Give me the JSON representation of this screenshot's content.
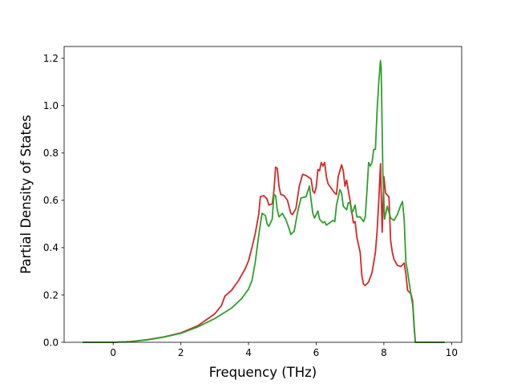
{
  "chart_data": {
    "type": "line",
    "title": "",
    "xlabel": "Frequency (THz)",
    "ylabel": "Partial Density of States",
    "xlim": [
      -1.45,
      10.3
    ],
    "ylim": [
      0,
      1.25
    ],
    "xticks": [
      0,
      2,
      4,
      6,
      8,
      10
    ],
    "yticks": [
      0.0,
      0.2,
      0.4,
      0.6,
      0.8,
      1.0,
      1.2
    ],
    "xtick_labels": [
      "0",
      "2",
      "4",
      "6",
      "8",
      "10"
    ],
    "ytick_labels": [
      "0.0",
      "0.2",
      "0.4",
      "0.6",
      "0.8",
      "1.0",
      "1.2"
    ],
    "grid": false,
    "legend": "none",
    "series": [
      {
        "color": "#d62728",
        "points": [
          [
            -0.9,
            0
          ],
          [
            0,
            0
          ],
          [
            0.5,
            0.003
          ],
          [
            1.0,
            0.011
          ],
          [
            1.5,
            0.023
          ],
          [
            2.0,
            0.04
          ],
          [
            2.5,
            0.07
          ],
          [
            3.0,
            0.12
          ],
          [
            3.2,
            0.155
          ],
          [
            3.3,
            0.195
          ],
          [
            3.5,
            0.22
          ],
          [
            3.7,
            0.26
          ],
          [
            3.9,
            0.31
          ],
          [
            4.0,
            0.345
          ],
          [
            4.1,
            0.4
          ],
          [
            4.2,
            0.46
          ],
          [
            4.3,
            0.54
          ],
          [
            4.35,
            0.615
          ],
          [
            4.45,
            0.62
          ],
          [
            4.55,
            0.605
          ],
          [
            4.6,
            0.58
          ],
          [
            4.7,
            0.585
          ],
          [
            4.75,
            0.64
          ],
          [
            4.8,
            0.74
          ],
          [
            4.85,
            0.735
          ],
          [
            4.9,
            0.66
          ],
          [
            4.95,
            0.625
          ],
          [
            5.05,
            0.62
          ],
          [
            5.15,
            0.6
          ],
          [
            5.25,
            0.545
          ],
          [
            5.3,
            0.54
          ],
          [
            5.4,
            0.565
          ],
          [
            5.5,
            0.66
          ],
          [
            5.6,
            0.71
          ],
          [
            5.7,
            0.705
          ],
          [
            5.8,
            0.695
          ],
          [
            5.85,
            0.69
          ],
          [
            5.9,
            0.64
          ],
          [
            5.95,
            0.63
          ],
          [
            6.0,
            0.655
          ],
          [
            6.05,
            0.73
          ],
          [
            6.1,
            0.725
          ],
          [
            6.15,
            0.76
          ],
          [
            6.2,
            0.745
          ],
          [
            6.25,
            0.76
          ],
          [
            6.3,
            0.7
          ],
          [
            6.35,
            0.67
          ],
          [
            6.45,
            0.65
          ],
          [
            6.55,
            0.63
          ],
          [
            6.6,
            0.625
          ],
          [
            6.65,
            0.7
          ],
          [
            6.75,
            0.75
          ],
          [
            6.8,
            0.725
          ],
          [
            6.85,
            0.66
          ],
          [
            6.9,
            0.685
          ],
          [
            6.95,
            0.64
          ],
          [
            7.0,
            0.6
          ],
          [
            7.1,
            0.505
          ],
          [
            7.15,
            0.51
          ],
          [
            7.2,
            0.445
          ],
          [
            7.3,
            0.38
          ],
          [
            7.35,
            0.28
          ],
          [
            7.4,
            0.245
          ],
          [
            7.45,
            0.24
          ],
          [
            7.55,
            0.255
          ],
          [
            7.65,
            0.295
          ],
          [
            7.75,
            0.38
          ],
          [
            7.8,
            0.47
          ],
          [
            7.85,
            0.6
          ],
          [
            7.9,
            0.755
          ],
          [
            7.95,
            0.465
          ],
          [
            8.0,
            0.7
          ],
          [
            8.05,
            0.63
          ],
          [
            8.15,
            0.615
          ],
          [
            8.2,
            0.43
          ],
          [
            8.25,
            0.38
          ],
          [
            8.3,
            0.35
          ],
          [
            8.4,
            0.325
          ],
          [
            8.5,
            0.32
          ],
          [
            8.6,
            0.335
          ],
          [
            8.65,
            0.29
          ],
          [
            8.7,
            0.22
          ],
          [
            8.8,
            0.205
          ],
          [
            8.85,
            0.175
          ],
          [
            8.9,
            0.06
          ],
          [
            8.93,
            0.0
          ],
          [
            9.8,
            0.0
          ]
        ]
      },
      {
        "color": "#2ca02c",
        "points": [
          [
            -0.9,
            0
          ],
          [
            0,
            0
          ],
          [
            0.5,
            0.003
          ],
          [
            1.0,
            0.01
          ],
          [
            1.5,
            0.022
          ],
          [
            2.0,
            0.038
          ],
          [
            2.5,
            0.065
          ],
          [
            3.0,
            0.1
          ],
          [
            3.5,
            0.145
          ],
          [
            3.8,
            0.185
          ],
          [
            4.0,
            0.225
          ],
          [
            4.1,
            0.26
          ],
          [
            4.2,
            0.34
          ],
          [
            4.3,
            0.45
          ],
          [
            4.35,
            0.5
          ],
          [
            4.4,
            0.545
          ],
          [
            4.5,
            0.535
          ],
          [
            4.55,
            0.5
          ],
          [
            4.6,
            0.49
          ],
          [
            4.7,
            0.52
          ],
          [
            4.75,
            0.625
          ],
          [
            4.8,
            0.62
          ],
          [
            4.85,
            0.56
          ],
          [
            4.9,
            0.53
          ],
          [
            5.0,
            0.545
          ],
          [
            5.1,
            0.52
          ],
          [
            5.2,
            0.48
          ],
          [
            5.25,
            0.455
          ],
          [
            5.35,
            0.47
          ],
          [
            5.45,
            0.55
          ],
          [
            5.55,
            0.61
          ],
          [
            5.7,
            0.615
          ],
          [
            5.8,
            0.66
          ],
          [
            5.85,
            0.6
          ],
          [
            5.9,
            0.545
          ],
          [
            5.95,
            0.525
          ],
          [
            6.05,
            0.555
          ],
          [
            6.1,
            0.52
          ],
          [
            6.2,
            0.505
          ],
          [
            6.25,
            0.51
          ],
          [
            6.3,
            0.495
          ],
          [
            6.4,
            0.505
          ],
          [
            6.5,
            0.515
          ],
          [
            6.55,
            0.51
          ],
          [
            6.6,
            0.58
          ],
          [
            6.7,
            0.645
          ],
          [
            6.75,
            0.63
          ],
          [
            6.8,
            0.575
          ],
          [
            6.9,
            0.56
          ],
          [
            6.95,
            0.59
          ],
          [
            7.0,
            0.59
          ],
          [
            7.05,
            0.545
          ],
          [
            7.1,
            0.56
          ],
          [
            7.15,
            0.58
          ],
          [
            7.2,
            0.53
          ],
          [
            7.3,
            0.53
          ],
          [
            7.4,
            0.51
          ],
          [
            7.45,
            0.53
          ],
          [
            7.5,
            0.64
          ],
          [
            7.55,
            0.76
          ],
          [
            7.6,
            0.745
          ],
          [
            7.65,
            0.76
          ],
          [
            7.7,
            0.815
          ],
          [
            7.75,
            0.815
          ],
          [
            7.8,
            0.98
          ],
          [
            7.85,
            1.1
          ],
          [
            7.9,
            1.19
          ],
          [
            7.92,
            1.16
          ],
          [
            7.97,
            0.72
          ],
          [
            8.02,
            0.52
          ],
          [
            8.1,
            0.575
          ],
          [
            8.2,
            0.525
          ],
          [
            8.3,
            0.515
          ],
          [
            8.4,
            0.54
          ],
          [
            8.5,
            0.58
          ],
          [
            8.55,
            0.595
          ],
          [
            8.6,
            0.52
          ],
          [
            8.65,
            0.34
          ],
          [
            8.7,
            0.3
          ],
          [
            8.8,
            0.2
          ],
          [
            8.85,
            0.16
          ],
          [
            8.9,
            0.05
          ],
          [
            8.93,
            0.0
          ],
          [
            9.8,
            0.0
          ]
        ]
      }
    ]
  }
}
